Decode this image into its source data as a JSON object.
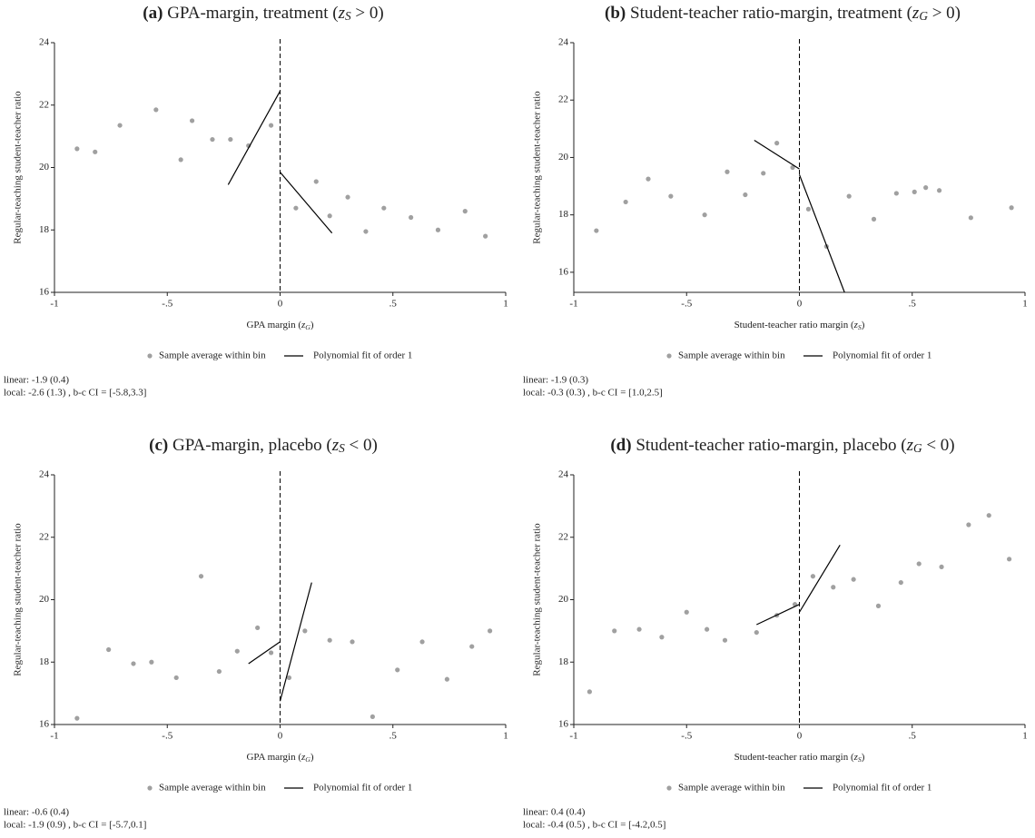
{
  "chart_data": [
    {
      "type": "scatter",
      "panel": "(a)",
      "title": {
        "text": "GPA-margin, treatment (",
        "var": "z",
        "sub": "S",
        "tail": " > 0)"
      },
      "xlabel": {
        "text": "GPA margin (",
        "var": "z",
        "sub": "G",
        "tail": ")"
      },
      "ylabel": "Regular-teaching student-teacher ratio",
      "xlim": [
        -1,
        1
      ],
      "ylim": [
        16,
        24
      ],
      "xticks": [
        -1,
        {
          "value": -0.5,
          "label": "-.5"
        },
        0,
        {
          "value": 0.5,
          "label": ".5"
        },
        1
      ],
      "yticks": [
        16,
        18,
        20,
        22,
        24
      ],
      "cutoff": 0,
      "series": [
        {
          "name": "Sample average within bin",
          "color": "#a0a0a0",
          "x": [
            -0.9,
            -0.82,
            -0.71,
            -0.55,
            -0.44,
            -0.39,
            -0.3,
            -0.22,
            -0.14,
            -0.04,
            0.07,
            0.16,
            0.22,
            0.3,
            0.38,
            0.46,
            0.58,
            0.7,
            0.82,
            0.91
          ],
          "values": [
            20.6,
            20.5,
            21.35,
            21.85,
            20.25,
            21.5,
            20.9,
            20.9,
            20.7,
            21.35,
            18.7,
            19.55,
            18.45,
            19.05,
            17.95,
            18.7,
            18.4,
            18.0,
            18.6,
            17.8
          ]
        },
        {
          "name": "Polynomial fit of order 1",
          "color": "#000000",
          "x": [
            -0.23,
            0,
            null,
            0,
            0.23
          ],
          "values": [
            19.45,
            22.45,
            null,
            19.85,
            17.9
          ]
        }
      ],
      "notes": [
        "linear: -1.9 (0.4)",
        "local: -2.6 (1.3) , b-c CI = [-5.8,3.3]"
      ]
    },
    {
      "type": "scatter",
      "panel": "(b)",
      "title": {
        "text": "Student-teacher ratio-margin, treatment (",
        "var": "z",
        "sub": "G",
        "tail": " > 0)"
      },
      "xlabel": {
        "text": "Student-teacher ratio margin (",
        "var": "z",
        "sub": "S",
        "tail": ")"
      },
      "ylabel": "Regular-teaching student-teacher ratio",
      "xlim": [
        -1,
        1
      ],
      "ylim": [
        15.3,
        24
      ],
      "xticks": [
        -1,
        {
          "value": -0.5,
          "label": "-.5"
        },
        0,
        {
          "value": 0.5,
          "label": ".5"
        },
        1
      ],
      "yticks": [
        16,
        18,
        20,
        22,
        24
      ],
      "cutoff": 0,
      "series": [
        {
          "name": "Sample average within bin",
          "color": "#a0a0a0",
          "x": [
            -0.9,
            -0.77,
            -0.67,
            -0.57,
            -0.42,
            -0.32,
            -0.24,
            -0.16,
            -0.1,
            -0.03,
            0.04,
            0.12,
            0.22,
            0.33,
            0.43,
            0.51,
            0.56,
            0.62,
            0.76,
            0.94
          ],
          "values": [
            17.45,
            18.45,
            19.25,
            18.65,
            18.0,
            19.5,
            18.7,
            19.45,
            20.5,
            19.65,
            18.2,
            16.9,
            18.65,
            17.85,
            18.75,
            18.8,
            18.95,
            18.85,
            17.9,
            18.25
          ]
        },
        {
          "name": "Polynomial fit of order 1",
          "color": "#000000",
          "x": [
            -0.2,
            0,
            null,
            0,
            0.2
          ],
          "values": [
            20.6,
            19.6,
            null,
            19.4,
            15.3
          ]
        }
      ],
      "notes": [
        "linear: -1.9 (0.3)",
        "local: -0.3 (0.3) , b-c CI = [1.0,2.5]"
      ]
    },
    {
      "type": "scatter",
      "panel": "(c)",
      "title": {
        "text": "GPA-margin, placebo (",
        "var": "z",
        "sub": "S",
        "tail": " < 0)"
      },
      "xlabel": {
        "text": "GPA margin (",
        "var": "z",
        "sub": "G",
        "tail": ")"
      },
      "ylabel": "Regular-teaching student-teacher ratio",
      "xlim": [
        -1,
        1
      ],
      "ylim": [
        16,
        24
      ],
      "xticks": [
        -1,
        {
          "value": -0.5,
          "label": "-.5"
        },
        0,
        {
          "value": 0.5,
          "label": ".5"
        },
        1
      ],
      "yticks": [
        16,
        18,
        20,
        22,
        24
      ],
      "cutoff": 0,
      "series": [
        {
          "name": "Sample average within bin",
          "color": "#a0a0a0",
          "x": [
            -0.9,
            -0.76,
            -0.65,
            -0.57,
            -0.46,
            -0.35,
            -0.27,
            -0.19,
            -0.1,
            -0.04,
            0.04,
            0.11,
            0.22,
            0.32,
            0.41,
            0.52,
            0.63,
            0.74,
            0.85,
            0.93
          ],
          "values": [
            16.2,
            18.4,
            17.95,
            18.0,
            17.5,
            20.75,
            17.7,
            18.35,
            19.1,
            18.3,
            17.5,
            19.0,
            18.7,
            18.65,
            16.25,
            17.75,
            18.65,
            17.45,
            18.5,
            19.0
          ]
        },
        {
          "name": "Polynomial fit of order 1",
          "color": "#000000",
          "x": [
            -0.14,
            0,
            null,
            0,
            0.14
          ],
          "values": [
            17.95,
            18.65,
            null,
            16.75,
            20.55
          ]
        }
      ],
      "notes": [
        "linear: -0.6 (0.4)",
        "local: -1.9 (0.9) , b-c CI = [-5.7,0.1]"
      ]
    },
    {
      "type": "scatter",
      "panel": "(d)",
      "title": {
        "text": "Student-teacher ratio-margin, placebo (",
        "var": "z",
        "sub": "G",
        "tail": " < 0)"
      },
      "xlabel": {
        "text": "Student-teacher ratio margin (",
        "var": "z",
        "sub": "S",
        "tail": ")"
      },
      "ylabel": "Regular-teaching student-teacher ratio",
      "xlim": [
        -1,
        1
      ],
      "ylim": [
        16,
        24
      ],
      "xticks": [
        -1,
        {
          "value": -0.5,
          "label": "-.5"
        },
        0,
        {
          "value": 0.5,
          "label": ".5"
        },
        1
      ],
      "yticks": [
        16,
        18,
        20,
        22,
        24
      ],
      "cutoff": 0,
      "series": [
        {
          "name": "Sample average within bin",
          "color": "#a0a0a0",
          "x": [
            -0.93,
            -0.82,
            -0.71,
            -0.61,
            -0.5,
            -0.41,
            -0.33,
            -0.19,
            -0.1,
            -0.02,
            0.06,
            0.15,
            0.24,
            0.35,
            0.45,
            0.53,
            0.63,
            0.75,
            0.84,
            0.93
          ],
          "values": [
            17.05,
            19.0,
            19.05,
            18.8,
            19.6,
            19.05,
            18.7,
            18.95,
            19.5,
            19.85,
            20.75,
            20.4,
            20.65,
            19.8,
            20.55,
            21.15,
            21.05,
            22.4,
            22.7,
            21.3
          ]
        },
        {
          "name": "Polynomial fit of order 1",
          "color": "#000000",
          "x": [
            -0.19,
            0,
            null,
            0,
            0.18
          ],
          "values": [
            19.2,
            19.85,
            null,
            19.6,
            21.75
          ]
        }
      ],
      "notes": [
        "linear: 0.4 (0.4)",
        "local: -0.4 (0.5) , b-c CI = [-4.2,0.5]"
      ]
    }
  ]
}
